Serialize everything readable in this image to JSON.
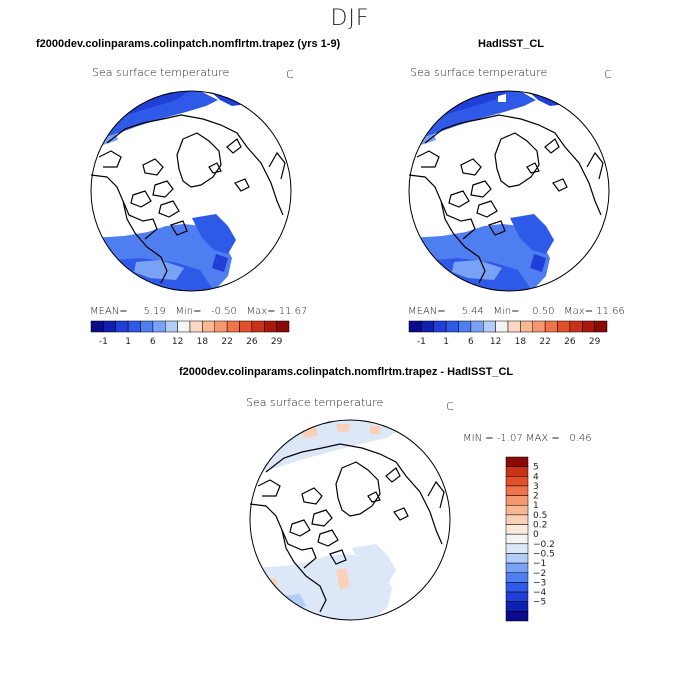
{
  "main_title": "DJF",
  "panels": [
    {
      "title": "f2000dev.colinparams.colinpatch.nomflrtm.trapez (yrs 1-9)",
      "subtitle": "Sea surface temperature",
      "units": "C",
      "stats": {
        "mean_label": "MEAN=",
        "mean": "5.19",
        "min_label": "Min=",
        "min": "-0.50",
        "max_label": "Max=",
        "max": "11.67"
      }
    },
    {
      "title": "HadISST_CL",
      "subtitle": "Sea surface temperature",
      "units": "C",
      "stats": {
        "mean_label": "MEAN=",
        "mean": "5.44",
        "min_label": "Min=",
        "min": "0.50",
        "max_label": "Max=",
        "max": "11.66"
      }
    }
  ],
  "diff_panel": {
    "title": "f2000dev.colinparams.colinpatch.nomflrtm.trapez - HadISST_CL",
    "subtitle": "Sea surface temperature",
    "units": "C",
    "stats": {
      "min_label": "MIN =",
      "min": "-1.07",
      "max_label": "MAX =",
      "max": "0.46"
    }
  },
  "chart_data": [
    {
      "type": "heatmap",
      "title": "f2000dev.colinparams.colinpatch.nomflrtm.trapez (yrs 1-9)",
      "variable": "Sea surface temperature",
      "units": "C",
      "projection": "north polar stereographic",
      "stats": {
        "mean": 5.19,
        "min": -0.5,
        "max": 11.67
      },
      "colorbar_ticks": [
        "-1",
        "1",
        "6",
        "12",
        "18",
        "22",
        "26",
        "29"
      ],
      "colorbar_colors": [
        "#0a0a8c",
        "#0f1fb0",
        "#1f3fd8",
        "#2f5ae8",
        "#4f7ef0",
        "#7aa2f4",
        "#b4ccf8",
        "#f4f4f4",
        "#fbd8c4",
        "#f8b896",
        "#f59870",
        "#f0744a",
        "#e2502a",
        "#c8321a",
        "#a8180c",
        "#8a0a06"
      ]
    },
    {
      "type": "heatmap",
      "title": "HadISST_CL",
      "variable": "Sea surface temperature",
      "units": "C",
      "projection": "north polar stereographic",
      "stats": {
        "mean": 5.44,
        "min": 0.5,
        "max": 11.66
      },
      "colorbar_ticks": [
        "-1",
        "1",
        "6",
        "12",
        "18",
        "22",
        "26",
        "29"
      ],
      "colorbar_colors": [
        "#0a0a8c",
        "#0f1fb0",
        "#1f3fd8",
        "#2f5ae8",
        "#4f7ef0",
        "#7aa2f4",
        "#b4ccf8",
        "#f4f4f4",
        "#fbd8c4",
        "#f8b896",
        "#f59870",
        "#f0744a",
        "#e2502a",
        "#c8321a",
        "#a8180c",
        "#8a0a06"
      ]
    },
    {
      "type": "heatmap",
      "title": "f2000dev.colinparams.colinpatch.nomflrtm.trapez - HadISST_CL",
      "variable": "Sea surface temperature",
      "units": "C",
      "projection": "north polar stereographic",
      "stats": {
        "min": -1.07,
        "max": 0.46
      },
      "colorbar_ticks": [
        "5",
        "4",
        "3",
        "2",
        "1",
        "0.5",
        "0.2",
        "0",
        "−0.2",
        "−0.5",
        "−1",
        "−2",
        "−3",
        "−4",
        "−5"
      ],
      "colorbar_colors": [
        "#8a0a06",
        "#c8321a",
        "#e2502a",
        "#f0744a",
        "#f59870",
        "#f8b896",
        "#fbd0b8",
        "#fde8dc",
        "#f4f4f4",
        "#dce8f8",
        "#b4ccf8",
        "#7aa2f4",
        "#4f7ef0",
        "#2f5ae8",
        "#1f3fd8",
        "#0f1fb0",
        "#0a0a8c"
      ]
    }
  ],
  "map_colors": {
    "deep_blue": "#1f3fd8",
    "blue": "#2f5ae8",
    "mid_blue": "#4f7ef0",
    "light_blue": "#7aa2f4",
    "pale_blue": "#dce8f8",
    "pale_orange": "#fbd0b8"
  }
}
